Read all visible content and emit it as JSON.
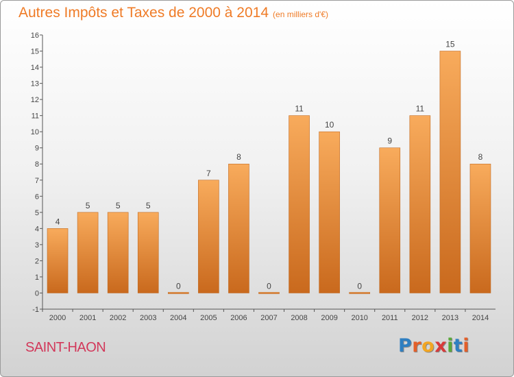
{
  "header": {
    "title": "Autres Impôts et Taxes de 2000 à 2014",
    "unit": "(en milliers d'€)"
  },
  "footer": {
    "place": "SAINT-HAON",
    "brand_letters": [
      {
        "ch": "P",
        "color": "#2f7fc1"
      },
      {
        "ch": "r",
        "color": "#e35f2a"
      },
      {
        "ch": "o",
        "color": "#f2a623"
      },
      {
        "ch": "x",
        "color": "#d83a3a"
      },
      {
        "ch": "i",
        "color": "#5aa83a"
      },
      {
        "ch": "t",
        "color": "#2f7fc1"
      },
      {
        "ch": "i",
        "color": "#e35f2a"
      }
    ]
  },
  "colors": {
    "title": "#ef7b26",
    "place": "#d2385a",
    "bar_top": "#f8ab5c",
    "bar_bottom": "#c9691d",
    "axis": "#555555"
  },
  "chart_data": {
    "type": "bar",
    "title": "Autres Impôts et Taxes de 2000 à 2014",
    "subtitle": "(en milliers d'€)",
    "categories": [
      "2000",
      "2001",
      "2002",
      "2003",
      "2004",
      "2005",
      "2006",
      "2007",
      "2008",
      "2009",
      "2010",
      "2011",
      "2012",
      "2013",
      "2014"
    ],
    "values": [
      4,
      5,
      5,
      5,
      0,
      7,
      8,
      0,
      11,
      10,
      0,
      9,
      11,
      15,
      8
    ],
    "value_labels": [
      "4",
      "5",
      "5",
      "5",
      "0",
      "7",
      "8",
      "0",
      "11",
      "10",
      "0",
      "9",
      "11",
      "15",
      "8"
    ],
    "ylim": [
      -1,
      16
    ],
    "yticks": [
      -1,
      0,
      1,
      2,
      3,
      4,
      5,
      6,
      7,
      8,
      9,
      10,
      11,
      12,
      13,
      14,
      15,
      16
    ],
    "grid": false,
    "legend": "none"
  }
}
